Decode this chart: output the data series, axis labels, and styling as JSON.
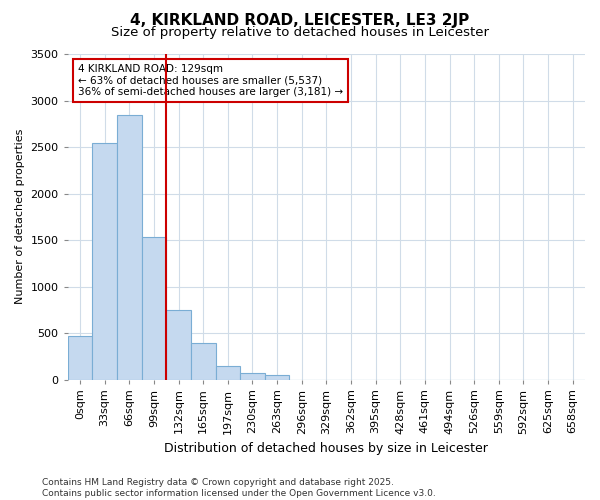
{
  "title": "4, KIRKLAND ROAD, LEICESTER, LE3 2JP",
  "subtitle": "Size of property relative to detached houses in Leicester",
  "xlabel": "Distribution of detached houses by size in Leicester",
  "ylabel": "Number of detached properties",
  "bar_labels": [
    "0sqm",
    "33sqm",
    "66sqm",
    "99sqm",
    "132sqm",
    "165sqm",
    "197sqm",
    "230sqm",
    "263sqm",
    "296sqm",
    "329sqm",
    "362sqm",
    "395sqm",
    "428sqm",
    "461sqm",
    "494sqm",
    "526sqm",
    "559sqm",
    "592sqm",
    "625sqm",
    "658sqm"
  ],
  "bar_values": [
    470,
    2540,
    2840,
    1530,
    750,
    390,
    140,
    75,
    50,
    0,
    0,
    0,
    0,
    0,
    0,
    0,
    0,
    0,
    0,
    0,
    0
  ],
  "bar_color": "#c5d9ef",
  "bar_edge_color": "#7aadd4",
  "bg_color": "#ffffff",
  "grid_color": "#d0dce8",
  "vline_x_index": 3,
  "vline_color": "#cc0000",
  "annotation_text": "4 KIRKLAND ROAD: 129sqm\n← 63% of detached houses are smaller (5,537)\n36% of semi-detached houses are larger (3,181) →",
  "annotation_box_edge": "#cc0000",
  "ylim": [
    0,
    3500
  ],
  "yticks": [
    0,
    500,
    1000,
    1500,
    2000,
    2500,
    3000,
    3500
  ],
  "footnote": "Contains HM Land Registry data © Crown copyright and database right 2025.\nContains public sector information licensed under the Open Government Licence v3.0.",
  "title_fontsize": 11,
  "subtitle_fontsize": 9.5,
  "xlabel_fontsize": 9,
  "ylabel_fontsize": 8,
  "tick_fontsize": 8,
  "footnote_fontsize": 6.5,
  "annot_fontsize": 7.5
}
